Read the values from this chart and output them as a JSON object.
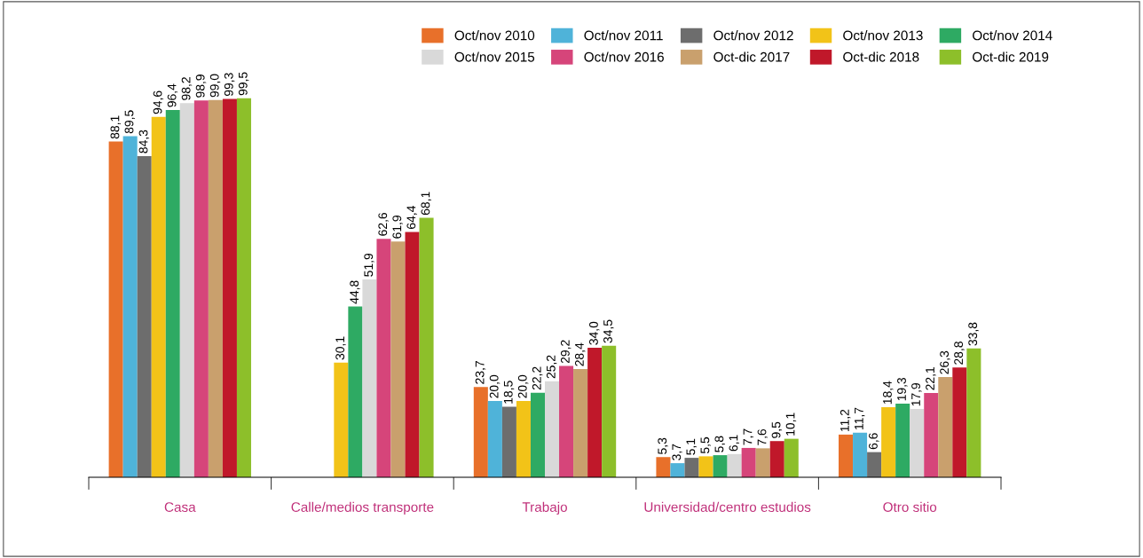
{
  "chart_data": {
    "type": "bar",
    "categories": [
      "Casa",
      "Calle/medios transporte",
      "Trabajo",
      "Universidad/centro estudios",
      "Otro sitio"
    ],
    "legend": "top right",
    "grid": false,
    "series": [
      {
        "name": "Oct/nov 2010",
        "color": "#e8702a",
        "values": [
          88.1,
          null,
          23.7,
          5.3,
          11.2
        ],
        "value_labels": [
          "88,1",
          null,
          "23,7",
          "5,3",
          "11,2"
        ]
      },
      {
        "name": "Oct/nov 2011",
        "color": "#4fb3d9",
        "values": [
          89.5,
          null,
          20.0,
          3.7,
          11.7
        ],
        "value_labels": [
          "89,5",
          null,
          "20,0",
          "3,7",
          "11,7"
        ]
      },
      {
        "name": "Oct/nov 2012",
        "color": "#6d6d6d",
        "values": [
          84.3,
          null,
          18.5,
          5.1,
          6.6
        ],
        "value_labels": [
          "84,3",
          null,
          "18,5",
          "5,1",
          "6,6"
        ]
      },
      {
        "name": "Oct/nov 2013",
        "color": "#f2c318",
        "values": [
          94.6,
          30.1,
          20.0,
          5.5,
          18.4
        ],
        "value_labels": [
          "94,6",
          "30,1",
          "20,0",
          "5,5",
          "18,4"
        ]
      },
      {
        "name": "Oct/nov 2014",
        "color": "#2eaa63",
        "values": [
          96.4,
          44.8,
          22.2,
          5.8,
          19.3
        ],
        "value_labels": [
          "96,4",
          "44,8",
          "22,2",
          "5,8",
          "19,3"
        ]
      },
      {
        "name": "Oct/nov 2015",
        "color": "#d9d9d9",
        "values": [
          98.2,
          51.9,
          25.2,
          6.1,
          17.9
        ],
        "value_labels": [
          "98,2",
          "51,9",
          "25,2",
          "6,1",
          "17,9"
        ]
      },
      {
        "name": "Oct/nov 2016",
        "color": "#d6457a",
        "values": [
          98.9,
          62.6,
          29.2,
          7.7,
          22.1
        ],
        "value_labels": [
          "98,9",
          "62,6",
          "29,2",
          "7,7",
          "22,1"
        ]
      },
      {
        "name": "Oct-dic 2017",
        "color": "#c9a06d",
        "values": [
          99.0,
          61.9,
          28.4,
          7.6,
          26.3
        ],
        "value_labels": [
          "99,0",
          "61,9",
          "28,4",
          "7,6",
          "26,3"
        ]
      },
      {
        "name": "Oct-dic 2018",
        "color": "#c0182a",
        "values": [
          99.3,
          64.4,
          34.0,
          9.5,
          28.8
        ],
        "value_labels": [
          "99,3",
          "64,4",
          "34,0",
          "9,5",
          "28,8"
        ]
      },
      {
        "name": "Oct-dic 2019",
        "color": "#8dbf2a",
        "values": [
          99.5,
          68.1,
          34.5,
          10.1,
          33.8
        ],
        "value_labels": [
          "99,5",
          "68,1",
          "34,5",
          "10,1",
          "33,8"
        ]
      }
    ]
  }
}
